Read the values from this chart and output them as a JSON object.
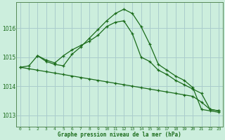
{
  "background_color": "#cceedd",
  "grid_color": "#aacccc",
  "line_color": "#1a6b1a",
  "title": "Graphe pression niveau de la mer (hPa)",
  "xlim": [
    -0.5,
    23.5
  ],
  "ylim": [
    1012.6,
    1016.9
  ],
  "yticks": [
    1013,
    1014,
    1015,
    1016
  ],
  "xticks": [
    0,
    1,
    2,
    3,
    4,
    5,
    6,
    7,
    8,
    9,
    10,
    11,
    12,
    13,
    14,
    15,
    16,
    17,
    18,
    19,
    20,
    21,
    22,
    23
  ],
  "line1_x": [
    0,
    1,
    2,
    3,
    4,
    5,
    6,
    7,
    8,
    9,
    10,
    11,
    12,
    13,
    14,
    15,
    16,
    17,
    18,
    19,
    20,
    21,
    22,
    23
  ],
  "line1_y": [
    1014.65,
    1014.7,
    1015.05,
    1014.9,
    1014.8,
    1015.05,
    1015.25,
    1015.4,
    1015.55,
    1015.75,
    1016.05,
    1016.2,
    1016.25,
    1015.8,
    1015.0,
    1014.85,
    1014.55,
    1014.4,
    1014.2,
    1014.05,
    1013.9,
    1013.75,
    1013.2,
    1013.15
  ],
  "line2_x": [
    2,
    3,
    4,
    5,
    6,
    7,
    8,
    9,
    10,
    11,
    12,
    13,
    14,
    15,
    16,
    17,
    18,
    19,
    20,
    21,
    22,
    23
  ],
  "line2_y": [
    1015.05,
    1014.85,
    1014.75,
    1014.7,
    1015.1,
    1015.35,
    1015.65,
    1015.95,
    1016.25,
    1016.5,
    1016.65,
    1016.5,
    1016.05,
    1015.45,
    1014.75,
    1014.55,
    1014.35,
    1014.2,
    1013.95,
    1013.2,
    1013.15,
    1013.1
  ],
  "line3_x": [
    0,
    1,
    2,
    3,
    4,
    5,
    6,
    7,
    8,
    9,
    10,
    11,
    12,
    13,
    14,
    15,
    16,
    17,
    18,
    19,
    20,
    21,
    22,
    23
  ],
  "line3_y": [
    1014.65,
    1014.6,
    1014.55,
    1014.5,
    1014.45,
    1014.4,
    1014.35,
    1014.3,
    1014.25,
    1014.2,
    1014.15,
    1014.1,
    1014.05,
    1014.0,
    1013.95,
    1013.9,
    1013.85,
    1013.8,
    1013.75,
    1013.7,
    1013.65,
    1013.45,
    1013.2,
    1013.15
  ]
}
